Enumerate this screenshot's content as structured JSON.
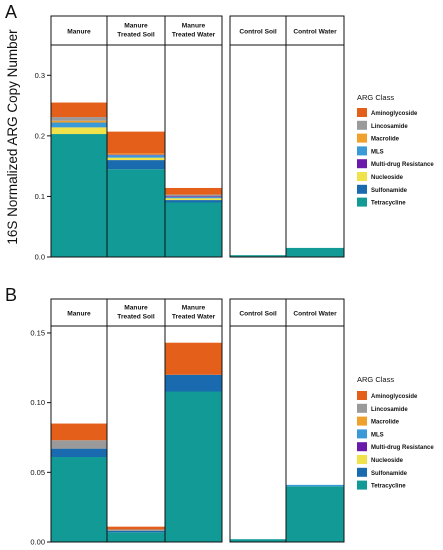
{
  "ylabel": "16S Normalized ARG Copy Number",
  "legend_title": "ARG Class",
  "colors": {
    "Aminoglycoside": "#e4601a",
    "Lincosamide": "#9a9a9a",
    "Macrolide": "#f0a02c",
    "MLS": "#3a9ad8",
    "Multi-drug Resistance": "#6a1aaa",
    "Nucleoside": "#f0e24a",
    "Sulfonamide": "#1a6ab0",
    "Tetracycline": "#119a96"
  },
  "chart_data": [
    {
      "panel": "A",
      "type": "bar",
      "stacked": true,
      "categories": [
        "Manure",
        "Manure Treated Soil",
        "Manure Treated Water",
        "Control Soil",
        "Control Water"
      ],
      "ylim": [
        0,
        0.35
      ],
      "yticks": [
        0.0,
        0.1,
        0.2,
        0.3
      ],
      "ytick_labels": [
        "0.0",
        "0.1",
        "0.2",
        "0.3"
      ],
      "legend": "right",
      "series": [
        {
          "name": "Tetracycline",
          "values": [
            0.203,
            0.145,
            0.09,
            0.003,
            0.015
          ]
        },
        {
          "name": "Sulfonamide",
          "values": [
            0.0,
            0.015,
            0.004,
            0.0,
            0.0
          ]
        },
        {
          "name": "Nucleoside",
          "values": [
            0.011,
            0.004,
            0.003,
            0.0,
            0.0
          ]
        },
        {
          "name": "MLS",
          "values": [
            0.008,
            0.004,
            0.002,
            0.0,
            0.0
          ]
        },
        {
          "name": "Multi-drug Resistance",
          "values": [
            0.0,
            0.001,
            0.001,
            0.0,
            0.0
          ]
        },
        {
          "name": "Macrolide",
          "values": [
            0.003,
            0.002,
            0.0,
            0.0,
            0.0
          ]
        },
        {
          "name": "Lincosamide",
          "values": [
            0.006,
            0.0,
            0.003,
            0.0,
            0.0
          ]
        },
        {
          "name": "Aminoglycoside",
          "values": [
            0.024,
            0.036,
            0.011,
            0.0,
            0.0
          ]
        }
      ]
    },
    {
      "panel": "B",
      "type": "bar",
      "stacked": true,
      "categories": [
        "Manure",
        "Manure Treated Soil",
        "Manure Treated Water",
        "Control Soil",
        "Control Water"
      ],
      "ylim": [
        0,
        0.155
      ],
      "yticks": [
        0.0,
        0.05,
        0.1,
        0.15
      ],
      "ytick_labels": [
        "0.00",
        "0.05",
        "0.10",
        "0.15"
      ],
      "legend": "right",
      "series": [
        {
          "name": "Tetracycline",
          "values": [
            0.061,
            0.007,
            0.108,
            0.002,
            0.04
          ]
        },
        {
          "name": "Sulfonamide",
          "values": [
            0.006,
            0.001,
            0.012,
            0.0,
            0.0
          ]
        },
        {
          "name": "Nucleoside",
          "values": [
            0.0,
            0.0,
            0.0,
            0.0,
            0.0
          ]
        },
        {
          "name": "MLS",
          "values": [
            0.0,
            0.0,
            0.0,
            0.0,
            0.001
          ]
        },
        {
          "name": "Multi-drug Resistance",
          "values": [
            0.0,
            0.0,
            0.0,
            0.0,
            0.0
          ]
        },
        {
          "name": "Macrolide",
          "values": [
            0.0,
            0.0,
            0.0,
            0.0,
            0.0
          ]
        },
        {
          "name": "Lincosamide",
          "values": [
            0.006,
            0.001,
            0.0,
            0.0,
            0.0
          ]
        },
        {
          "name": "Aminoglycoside",
          "values": [
            0.012,
            0.002,
            0.023,
            0.0,
            0.0
          ]
        }
      ]
    }
  ],
  "legend_items": [
    "Aminoglycoside",
    "Lincosamide",
    "Macrolide",
    "MLS",
    "Multi-drug Resistance",
    "Nucleoside",
    "Sulfonamide",
    "Tetracycline"
  ]
}
